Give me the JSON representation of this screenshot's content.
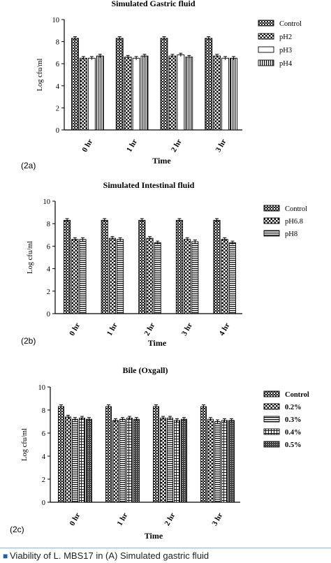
{
  "figure": {
    "caption_visible": "Viability of L. MBS17 in (A) Simulated gastric fluid"
  },
  "chart_data": [
    {
      "type": "bar",
      "panel_label": "(2a)",
      "title": "Simulated Gastric fluid",
      "xlabel": "Time",
      "ylabel": "Log cfu/ml",
      "ylim": [
        0,
        10
      ],
      "yticks": [
        0,
        2,
        4,
        6,
        8,
        10
      ],
      "categories": [
        "0 hr",
        "1 hr",
        "2 hr",
        "3 hr"
      ],
      "legend_position": "right",
      "series": [
        {
          "name": "Control",
          "pattern": "checker-dark",
          "values": [
            8.3,
            8.3,
            8.3,
            8.3
          ]
        },
        {
          "name": "pH2",
          "pattern": "checker",
          "values": [
            6.5,
            6.6,
            6.7,
            6.7
          ]
        },
        {
          "name": "pH3",
          "pattern": "blank",
          "values": [
            6.5,
            6.5,
            6.8,
            6.5
          ]
        },
        {
          "name": "pH4",
          "pattern": "vstripes",
          "values": [
            6.7,
            6.7,
            6.6,
            6.5
          ]
        }
      ]
    },
    {
      "type": "bar",
      "panel_label": "(2b)",
      "title": "Simulated Intestinal fluid",
      "xlabel": "Time",
      "ylabel": "Log cfu/ml",
      "ylim": [
        0,
        10
      ],
      "yticks": [
        0,
        2,
        4,
        6,
        8,
        10
      ],
      "categories": [
        "0 hr",
        "1 hr",
        "2 hr",
        "3 hr",
        "4 hr"
      ],
      "legend_position": "right",
      "series": [
        {
          "name": "Control",
          "pattern": "checker-dark",
          "values": [
            8.3,
            8.3,
            8.3,
            8.3,
            8.3
          ]
        },
        {
          "name": "pH6.8",
          "pattern": "checker",
          "values": [
            6.6,
            6.7,
            6.7,
            6.6,
            6.6
          ]
        },
        {
          "name": "pH8",
          "pattern": "hstripes",
          "values": [
            6.6,
            6.6,
            6.3,
            6.4,
            6.3
          ]
        }
      ]
    },
    {
      "type": "bar",
      "panel_label": "(2c)",
      "title": "Bile (Oxgall)",
      "xlabel": "Time",
      "ylabel": "Log cfu/ml",
      "ylim": [
        0,
        10
      ],
      "yticks": [
        0,
        2,
        4,
        6,
        8,
        10
      ],
      "categories": [
        "0 hr",
        "1 hr",
        "2 hr",
        "3 hr"
      ],
      "legend_position": "right",
      "series": [
        {
          "name": "Control",
          "pattern": "checker-dark",
          "values": [
            8.3,
            8.3,
            8.3,
            8.3
          ]
        },
        {
          "name": "0.2%",
          "pattern": "checker",
          "values": [
            7.4,
            7.1,
            7.3,
            7.2
          ]
        },
        {
          "name": "0.3%",
          "pattern": "hstripes",
          "values": [
            7.2,
            7.2,
            7.3,
            7.0
          ]
        },
        {
          "name": "0.4%",
          "pattern": "grid",
          "values": [
            7.3,
            7.3,
            7.1,
            7.1
          ]
        },
        {
          "name": "0.5%",
          "pattern": "dense",
          "values": [
            7.2,
            7.2,
            7.2,
            7.1
          ]
        }
      ]
    }
  ]
}
